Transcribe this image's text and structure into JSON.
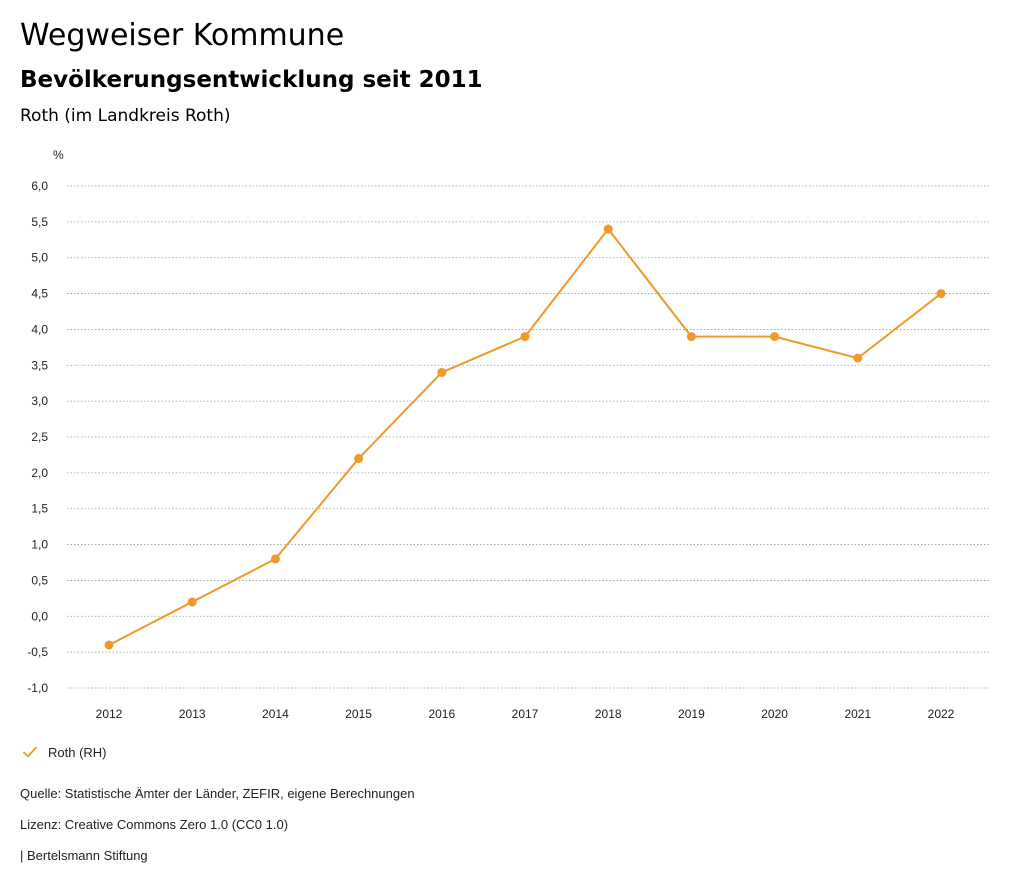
{
  "header": {
    "title": "Wegweiser Kommune",
    "subtitle": "Bevölkerungsentwicklung seit 2011",
    "region": "Roth (im Landkreis Roth)"
  },
  "chart_data": {
    "type": "line",
    "title": "Bevölkerungsentwicklung seit 2011",
    "ylabel": "%",
    "xlabel": "",
    "ylim": [
      -1.0,
      6.0
    ],
    "y_ticks": [
      "6,0",
      "5,5",
      "5,0",
      "4,5",
      "4,0",
      "3,5",
      "3,0",
      "2,5",
      "2,0",
      "1,5",
      "1,0",
      "0,5",
      "0,0",
      "-0,5",
      "-1,0"
    ],
    "y_tick_values": [
      6.0,
      5.5,
      5.0,
      4.5,
      4.0,
      3.5,
      3.0,
      2.5,
      2.0,
      1.5,
      1.0,
      0.5,
      0.0,
      -0.5,
      -1.0
    ],
    "grid": "horizontal-dotted",
    "categories": [
      "2012",
      "2013",
      "2014",
      "2015",
      "2016",
      "2017",
      "2018",
      "2019",
      "2020",
      "2021",
      "2022"
    ],
    "series": [
      {
        "name": "Roth (RH)",
        "color": "#f0992a",
        "values": [
          -0.4,
          0.2,
          0.8,
          2.2,
          3.4,
          3.9,
          5.4,
          3.9,
          3.9,
          3.6,
          4.5
        ]
      }
    ]
  },
  "legend": {
    "label": "Roth (RH)",
    "icon": "checkmark-icon"
  },
  "footer": {
    "source": "Quelle: Statistische Ämter der Länder, ZEFIR, eigene Berechnungen",
    "license": "Lizenz: Creative Commons Zero 1.0 (CC0 1.0)",
    "publisher": "| Bertelsmann Stiftung"
  }
}
